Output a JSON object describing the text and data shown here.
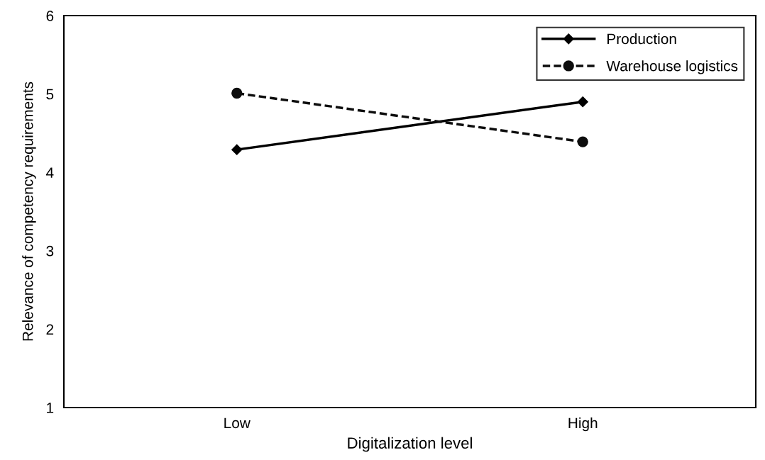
{
  "chart_data": {
    "type": "line",
    "xlabel": "Digitalization level",
    "ylabel": "Relevance of competency requirements",
    "categories": [
      "Low",
      "High"
    ],
    "ylim": [
      1,
      6
    ],
    "yticks": [
      1,
      2,
      3,
      4,
      5,
      6
    ],
    "grid": false,
    "legend": "top right",
    "series": [
      {
        "name": "Production",
        "color": "#000000",
        "values": [
          4.29,
          4.9
        ],
        "marker": "diamond",
        "line_style": "solid"
      },
      {
        "name": "Warehouse logistics",
        "color": "#0d0d0d",
        "values": [
          5.01,
          4.39
        ],
        "marker": "circle",
        "line_style": "dashed"
      }
    ]
  }
}
